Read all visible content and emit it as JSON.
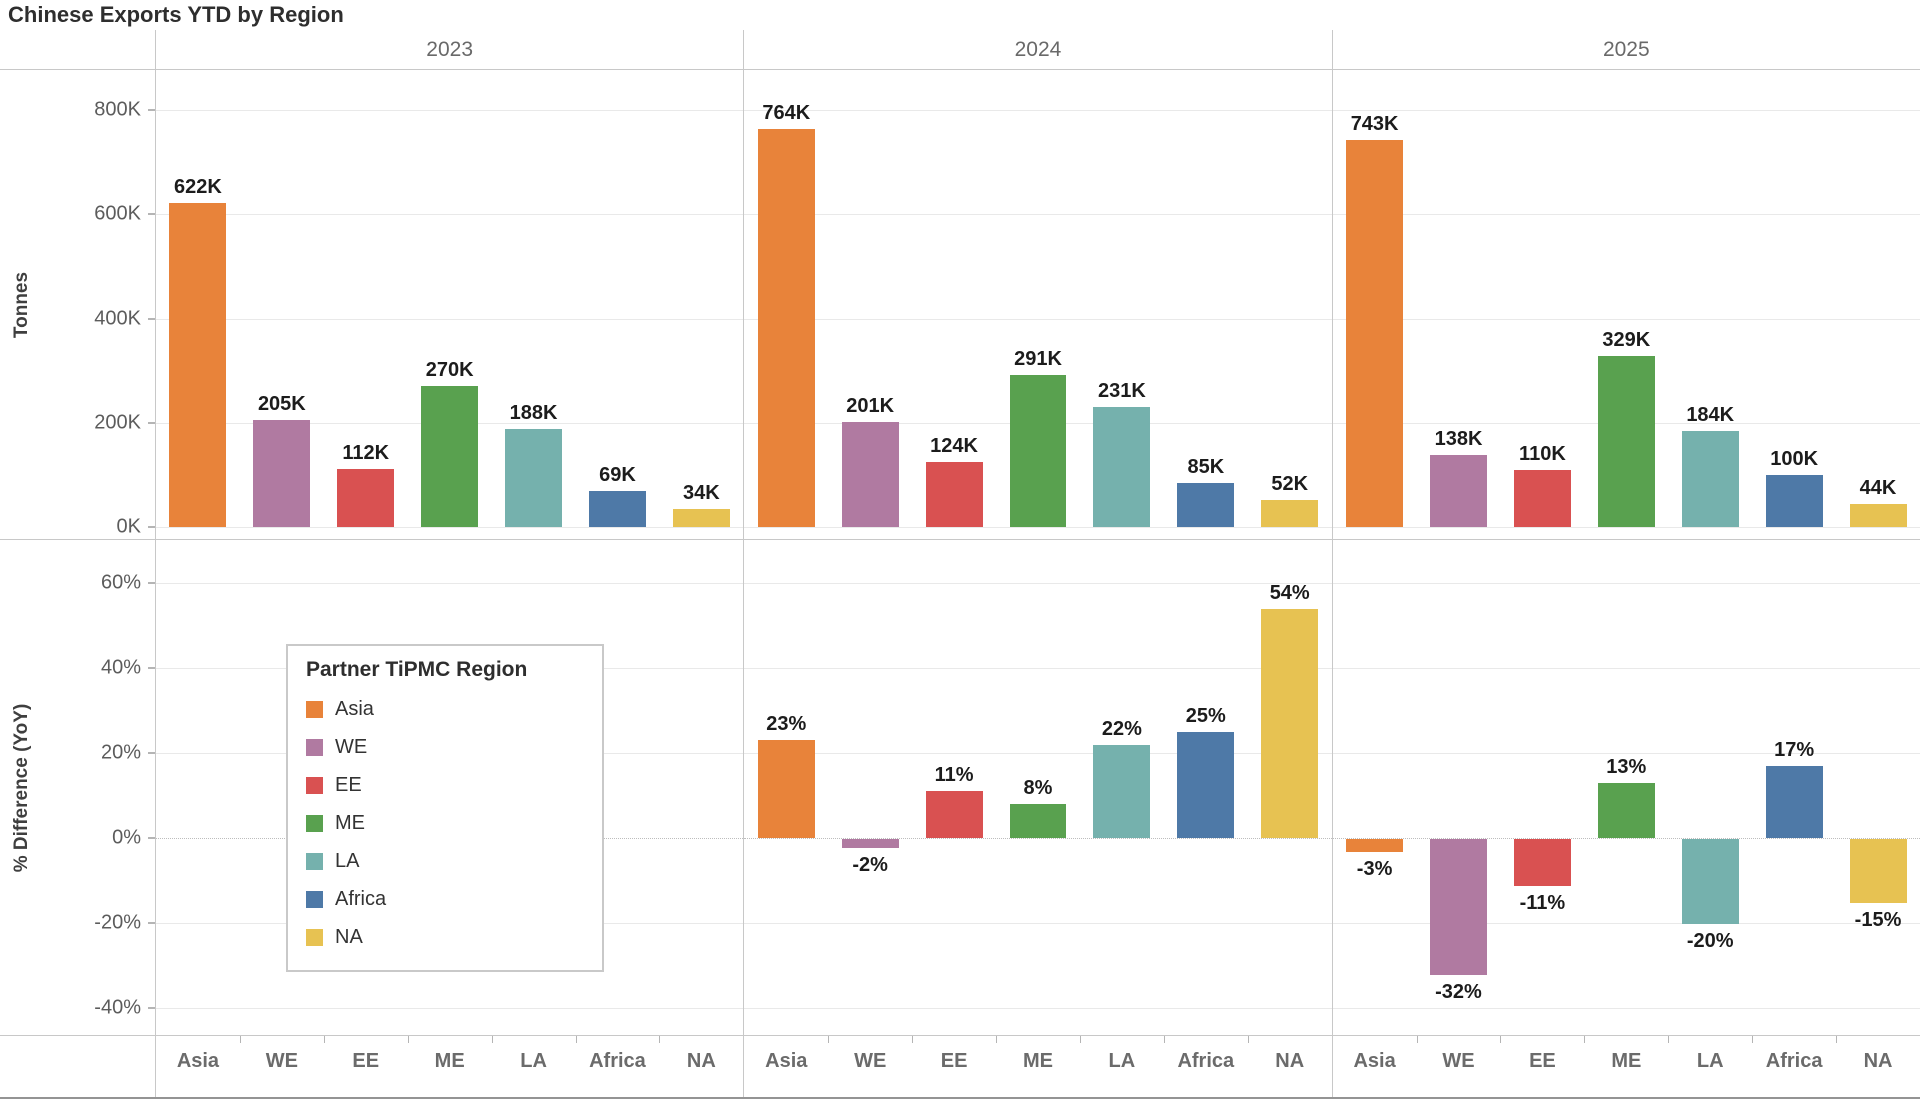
{
  "title": "Chinese Exports YTD by Region",
  "chart_data": {
    "type": "bar",
    "title": "Chinese Exports YTD by Region",
    "facet_years": [
      "2023",
      "2024",
      "2025"
    ],
    "categories": [
      "Asia",
      "WE",
      "EE",
      "ME",
      "LA",
      "Africa",
      "NA"
    ],
    "legend": {
      "title": "Partner TiPMC Region",
      "position": "bottom-left-panel",
      "entries": [
        {
          "label": "Asia",
          "color": "#E8833A"
        },
        {
          "label": "WE",
          "color": "#B07AA1"
        },
        {
          "label": "EE",
          "color": "#D95151"
        },
        {
          "label": "ME",
          "color": "#59A14F"
        },
        {
          "label": "LA",
          "color": "#75B1AD"
        },
        {
          "label": "Africa",
          "color": "#4E79A7"
        },
        {
          "label": "NA",
          "color": "#E7C252"
        }
      ]
    },
    "top": {
      "ylabel": "Tonnes",
      "unit": "K tonnes",
      "tick_labels": [
        "800K",
        "600K",
        "400K",
        "200K",
        "0K"
      ],
      "tick_values": [
        800,
        600,
        400,
        200,
        0
      ],
      "ylim": [
        0,
        880
      ],
      "grid": true,
      "series": [
        {
          "year": "2023",
          "values": [
            622,
            205,
            112,
            270,
            188,
            69,
            34
          ],
          "labels": [
            "622K",
            "205K",
            "112K",
            "270K",
            "188K",
            "69K",
            "34K"
          ]
        },
        {
          "year": "2024",
          "values": [
            764,
            201,
            124,
            291,
            231,
            85,
            52
          ],
          "labels": [
            "764K",
            "201K",
            "124K",
            "291K",
            "231K",
            "85K",
            "52K"
          ]
        },
        {
          "year": "2025",
          "values": [
            743,
            138,
            110,
            329,
            184,
            100,
            44
          ],
          "labels": [
            "743K",
            "138K",
            "110K",
            "329K",
            "184K",
            "100K",
            "44K"
          ]
        }
      ]
    },
    "bottom": {
      "ylabel": "% Difference (YoY)",
      "unit": "percent",
      "tick_labels": [
        "60%",
        "40%",
        "20%",
        "0%",
        "-20%",
        "-40%"
      ],
      "tick_values": [
        60,
        40,
        20,
        0,
        -20,
        -40
      ],
      "ylim": [
        -47,
        70
      ],
      "grid": true,
      "zero_line": "dotted",
      "series": [
        {
          "year": "2023",
          "values": null,
          "labels": null
        },
        {
          "year": "2024",
          "values": [
            23,
            -2,
            11,
            8,
            22,
            25,
            54
          ],
          "labels": [
            "23%",
            "-2%",
            "11%",
            "8%",
            "22%",
            "25%",
            "54%"
          ]
        },
        {
          "year": "2025",
          "values": [
            -3,
            -32,
            -11,
            13,
            -20,
            17,
            -15
          ],
          "labels": [
            "-3%",
            "-32%",
            "-11%",
            "13%",
            "-20%",
            "17%",
            "-15%"
          ]
        }
      ]
    }
  }
}
